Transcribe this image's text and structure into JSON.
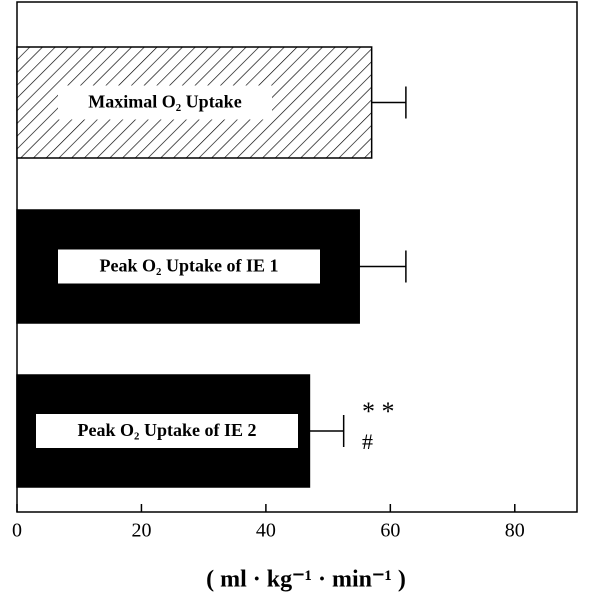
{
  "chart_data": {
    "type": "hbar",
    "categories": [
      "Maximal O₂ Uptake",
      "Peak O₂ Uptake of IE 1",
      "Peak O₂ Uptake of IE 2"
    ],
    "values": [
      57,
      55,
      47
    ],
    "errors": [
      5.5,
      7.5,
      5.5
    ],
    "fills": [
      "hatch",
      "#000000",
      "#000000"
    ],
    "annotations": [
      "* *",
      "#"
    ],
    "x_label": "( ml · kg⁻¹ · min⁻¹ )",
    "xlim": [
      0,
      90
    ],
    "xticks": [
      0,
      20,
      40,
      60,
      80
    ]
  }
}
